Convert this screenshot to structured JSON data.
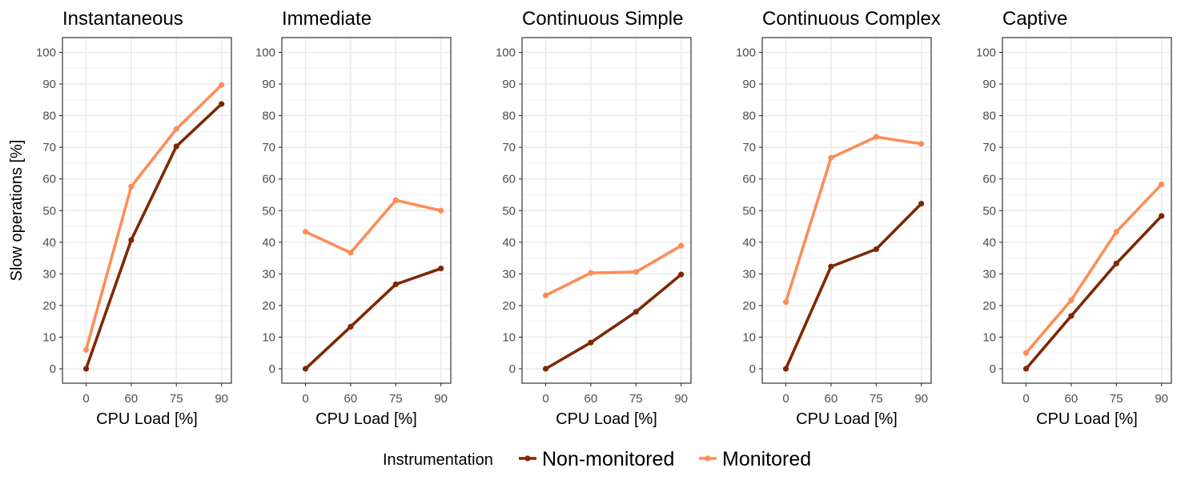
{
  "chart_data": {
    "type": "line",
    "ylabel": "Slow operations [%]",
    "xlabel": "CPU Load [%]",
    "categories": [
      "0",
      "60",
      "75",
      "90"
    ],
    "ylim": [
      0,
      100
    ],
    "yticks": [
      0,
      10,
      20,
      30,
      40,
      50,
      60,
      70,
      80,
      90,
      100
    ],
    "grid": true,
    "legend": {
      "title": "Instrumentation",
      "placement": "bottom",
      "entries": [
        "Non-monitored",
        "Monitored"
      ]
    },
    "colors": {
      "Non-monitored": "#7f2704",
      "Monitored": "#fd8d57"
    },
    "panels": [
      {
        "title": "Instantaneous",
        "series": [
          {
            "name": "Non-monitored",
            "values": [
              0,
              40.7,
              70.3,
              83.7
            ]
          },
          {
            "name": "Monitored",
            "values": [
              6,
              57.6,
              75.8,
              89.7
            ]
          }
        ]
      },
      {
        "title": "Immediate",
        "series": [
          {
            "name": "Non-monitored",
            "values": [
              0,
              13.3,
              26.7,
              31.7
            ]
          },
          {
            "name": "Monitored",
            "values": [
              43.3,
              36.7,
              53.3,
              50
            ]
          }
        ]
      },
      {
        "title": "Continuous Simple",
        "series": [
          {
            "name": "Non-monitored",
            "values": [
              0,
              8.3,
              18,
              29.8
            ]
          },
          {
            "name": "Monitored",
            "values": [
              23.2,
              30.3,
              30.6,
              38.9
            ]
          }
        ]
      },
      {
        "title": "Continuous Complex",
        "series": [
          {
            "name": "Non-monitored",
            "values": [
              0,
              32.3,
              37.8,
              52.2
            ]
          },
          {
            "name": "Monitored",
            "values": [
              21.1,
              66.7,
              73.3,
              71.1
            ]
          }
        ]
      },
      {
        "title": "Captive",
        "series": [
          {
            "name": "Non-monitored",
            "values": [
              0,
              16.7,
              33.3,
              48.3
            ]
          },
          {
            "name": "Monitored",
            "values": [
              5,
              21.7,
              43.3,
              58.3
            ]
          }
        ]
      }
    ]
  }
}
